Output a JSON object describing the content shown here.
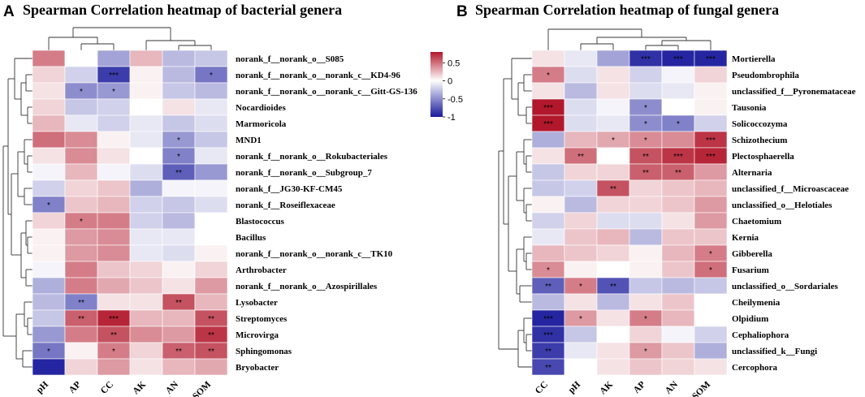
{
  "colorbar": {
    "ticks": [
      0.5,
      0,
      -0.5,
      -1
    ],
    "tick_labels": [
      "0.5",
      "0",
      "-0.5",
      "-1"
    ],
    "min": -1,
    "max": 0.8,
    "colors": {
      "neg": "#1a1a9c",
      "mid": "#ffffff",
      "pos": "#b2182b"
    }
  },
  "chart_data": [
    {
      "type": "heatmap",
      "panel": "A",
      "title": "Spearman Correlation heatmap of bacterial genera",
      "columns": [
        "pH",
        "AP",
        "CC",
        "AK",
        "AN",
        "SOM"
      ],
      "rows": [
        "norank_f__norank_o__S085",
        "norank_f__norank_o__norank_c__KD4-96",
        "norank_f__norank_o__norank_c__Gitt-GS-136",
        "Nocardioides",
        "Marmoricola",
        "MND1",
        "norank_f__norank_o__Rokubacteriales",
        "norank_f__norank_o__Subgroup_7",
        "norank_f__JG30-KF-CM45",
        "norank_f__Roseiflexaceae",
        "Blastococcus",
        "Bacillus",
        "norank_f__norank_o__norank_c__TK10",
        "Arthrobacter",
        "norank_f__norank_o__Azospirillales",
        "Lysobacter",
        "Streptomyces",
        "Microvirga",
        "Sphingomonas",
        "Bryobacter"
      ],
      "values": [
        [
          0.45,
          0.0,
          -0.4,
          0.25,
          -0.3,
          -0.25
        ],
        [
          0.15,
          -0.2,
          -0.85,
          0.05,
          -0.3,
          -0.6
        ],
        [
          0.1,
          -0.5,
          -0.45,
          0.05,
          -0.25,
          -0.3
        ],
        [
          0.15,
          -0.25,
          -0.2,
          0.0,
          0.1,
          -0.1
        ],
        [
          0.25,
          -0.1,
          -0.2,
          -0.1,
          -0.25,
          -0.15
        ],
        [
          0.5,
          0.4,
          0.05,
          -0.1,
          -0.45,
          -0.25
        ],
        [
          0.1,
          0.4,
          0.1,
          0.0,
          -0.55,
          -0.1
        ],
        [
          -0.05,
          0.25,
          -0.05,
          -0.15,
          -0.7,
          -0.45
        ],
        [
          -0.2,
          0.15,
          0.2,
          -0.35,
          -0.05,
          -0.05
        ],
        [
          -0.55,
          0.2,
          0.25,
          -0.2,
          -0.25,
          -0.15
        ],
        [
          0.15,
          0.45,
          0.45,
          -0.2,
          -0.3,
          0.0
        ],
        [
          0.05,
          0.35,
          0.4,
          -0.1,
          -0.1,
          0.0
        ],
        [
          0.05,
          0.35,
          0.4,
          -0.1,
          -0.15,
          0.05
        ],
        [
          -0.05,
          0.45,
          0.2,
          0.15,
          0.05,
          0.15
        ],
        [
          -0.35,
          0.45,
          0.3,
          0.2,
          0.1,
          0.35
        ],
        [
          -0.3,
          -0.55,
          0.1,
          0.1,
          0.6,
          0.25
        ],
        [
          -0.25,
          0.55,
          0.75,
          0.25,
          0.25,
          0.6
        ],
        [
          -0.45,
          0.45,
          0.6,
          0.4,
          0.35,
          0.7
        ],
        [
          -0.6,
          0.05,
          0.45,
          0.15,
          0.55,
          0.6
        ],
        [
          -0.95,
          0.15,
          0.35,
          0.1,
          0.25,
          0.3
        ]
      ],
      "significance": [
        [
          "",
          "",
          "",
          "",
          "",
          ""
        ],
        [
          "",
          "",
          "***",
          "",
          "",
          "*"
        ],
        [
          "",
          "*",
          "*",
          "",
          "",
          ""
        ],
        [
          "",
          "",
          "",
          "",
          "",
          ""
        ],
        [
          "",
          "",
          "",
          "",
          "",
          ""
        ],
        [
          "",
          "",
          "",
          "",
          "*",
          ""
        ],
        [
          "",
          "",
          "",
          "",
          "*",
          ""
        ],
        [
          "",
          "",
          "",
          "",
          "**",
          ""
        ],
        [
          "",
          "",
          "",
          "",
          "",
          ""
        ],
        [
          "*",
          "",
          "",
          "",
          "",
          ""
        ],
        [
          "",
          "*",
          "",
          "",
          "",
          ""
        ],
        [
          "",
          "",
          "",
          "",
          "",
          ""
        ],
        [
          "",
          "",
          "",
          "",
          "",
          ""
        ],
        [
          "",
          "",
          "",
          "",
          "",
          ""
        ],
        [
          "",
          "",
          "",
          "",
          "",
          ""
        ],
        [
          "",
          "**",
          "",
          "",
          "**",
          ""
        ],
        [
          "",
          "**",
          "***",
          "",
          "",
          "**"
        ],
        [
          "",
          "",
          "**",
          "",
          "",
          "**"
        ],
        [
          "*",
          "",
          "*",
          "",
          "**",
          "**"
        ],
        [
          "",
          "",
          "",
          "",
          "",
          ""
        ]
      ]
    },
    {
      "type": "heatmap",
      "panel": "B",
      "title": "Spearman Correlation heatmap of fungal genera",
      "columns": [
        "CC",
        "pH",
        "AK",
        "AP",
        "AN",
        "SOM"
      ],
      "rows": [
        "Mortierella",
        "Pseudombrophila",
        "unclassified_f__Pyronemataceae",
        "Tausonia",
        "Solicoccozyma",
        "Schizothecium",
        "Plectosphaerella",
        "Alternaria",
        "unclassified_f__Microascaceae",
        "unclassified_o__Helotiales",
        "Chaetomium",
        "Kernia",
        "Gibberella",
        "Fusarium",
        "unclassified_o__Sordariales",
        "Cheilymenia",
        "Olpidium",
        "Cephaliophora",
        "unclassified_k__Fungi",
        "Cercophora"
      ],
      "values": [
        [
          0.1,
          -0.1,
          -0.4,
          -0.9,
          -0.95,
          -0.95
        ],
        [
          0.45,
          -0.15,
          0.1,
          -0.2,
          -0.05,
          0.15
        ],
        [
          0.1,
          -0.3,
          0.1,
          -0.15,
          -0.1,
          0.05
        ],
        [
          0.8,
          -0.15,
          -0.05,
          -0.5,
          0.0,
          0.05
        ],
        [
          0.8,
          -0.15,
          -0.1,
          -0.5,
          -0.55,
          -0.2
        ],
        [
          -0.35,
          0.25,
          0.3,
          0.4,
          0.4,
          0.7
        ],
        [
          0.1,
          0.5,
          0.0,
          0.6,
          0.7,
          0.75
        ],
        [
          -0.25,
          0.15,
          0.15,
          0.55,
          0.55,
          0.35
        ],
        [
          -0.25,
          -0.2,
          0.6,
          0.15,
          0.2,
          0.25
        ],
        [
          0.05,
          -0.3,
          0.15,
          0.15,
          0.2,
          0.35
        ],
        [
          -0.2,
          0.15,
          -0.15,
          -0.15,
          0.1,
          0.35
        ],
        [
          -0.1,
          0.2,
          0.25,
          -0.3,
          0.2,
          0.2
        ],
        [
          0.25,
          0.2,
          0.15,
          0.05,
          0.25,
          0.45
        ],
        [
          0.4,
          0.05,
          0.0,
          0.05,
          0.2,
          0.5
        ],
        [
          -0.7,
          0.45,
          -0.75,
          -0.25,
          -0.3,
          -0.25
        ],
        [
          -0.3,
          0.1,
          -0.3,
          0.1,
          0.2,
          0.0
        ],
        [
          -0.95,
          0.35,
          0.1,
          0.45,
          0.25,
          0.0
        ],
        [
          -0.9,
          -0.25,
          0.0,
          0.15,
          -0.05,
          -0.2
        ],
        [
          -0.85,
          -0.1,
          0.1,
          0.35,
          0.2,
          -0.35
        ],
        [
          -0.8,
          0.0,
          0.1,
          0.2,
          0.15,
          0.1
        ]
      ],
      "significance": [
        [
          "",
          "",
          "",
          "***",
          "***",
          "***"
        ],
        [
          "*",
          "",
          "",
          "",
          "",
          ""
        ],
        [
          "",
          "",
          "",
          "",
          "",
          ""
        ],
        [
          "***",
          "",
          "",
          "*",
          "",
          ""
        ],
        [
          "***",
          "",
          "",
          "*",
          "*",
          ""
        ],
        [
          "",
          "",
          "*",
          "*",
          "",
          "***"
        ],
        [
          "",
          "**",
          "",
          "**",
          "***",
          "***"
        ],
        [
          "",
          "",
          "",
          "**",
          "**",
          ""
        ],
        [
          "",
          "",
          "**",
          "",
          "",
          ""
        ],
        [
          "",
          "",
          "",
          "",
          "",
          ""
        ],
        [
          "",
          "",
          "",
          "",
          "",
          ""
        ],
        [
          "",
          "",
          "",
          "",
          "",
          ""
        ],
        [
          "",
          "",
          "",
          "",
          "",
          "*"
        ],
        [
          "*",
          "",
          "",
          "",
          "",
          "*"
        ],
        [
          "**",
          "*",
          "**",
          "",
          "",
          ""
        ],
        [
          "",
          "",
          "",
          "",
          "",
          ""
        ],
        [
          "***",
          "*",
          "",
          "*",
          "",
          ""
        ],
        [
          "***",
          "",
          "",
          "",
          "",
          ""
        ],
        [
          "**",
          "",
          "",
          "*",
          "",
          ""
        ],
        [
          "**",
          "",
          "",
          "",
          "",
          ""
        ]
      ]
    }
  ]
}
